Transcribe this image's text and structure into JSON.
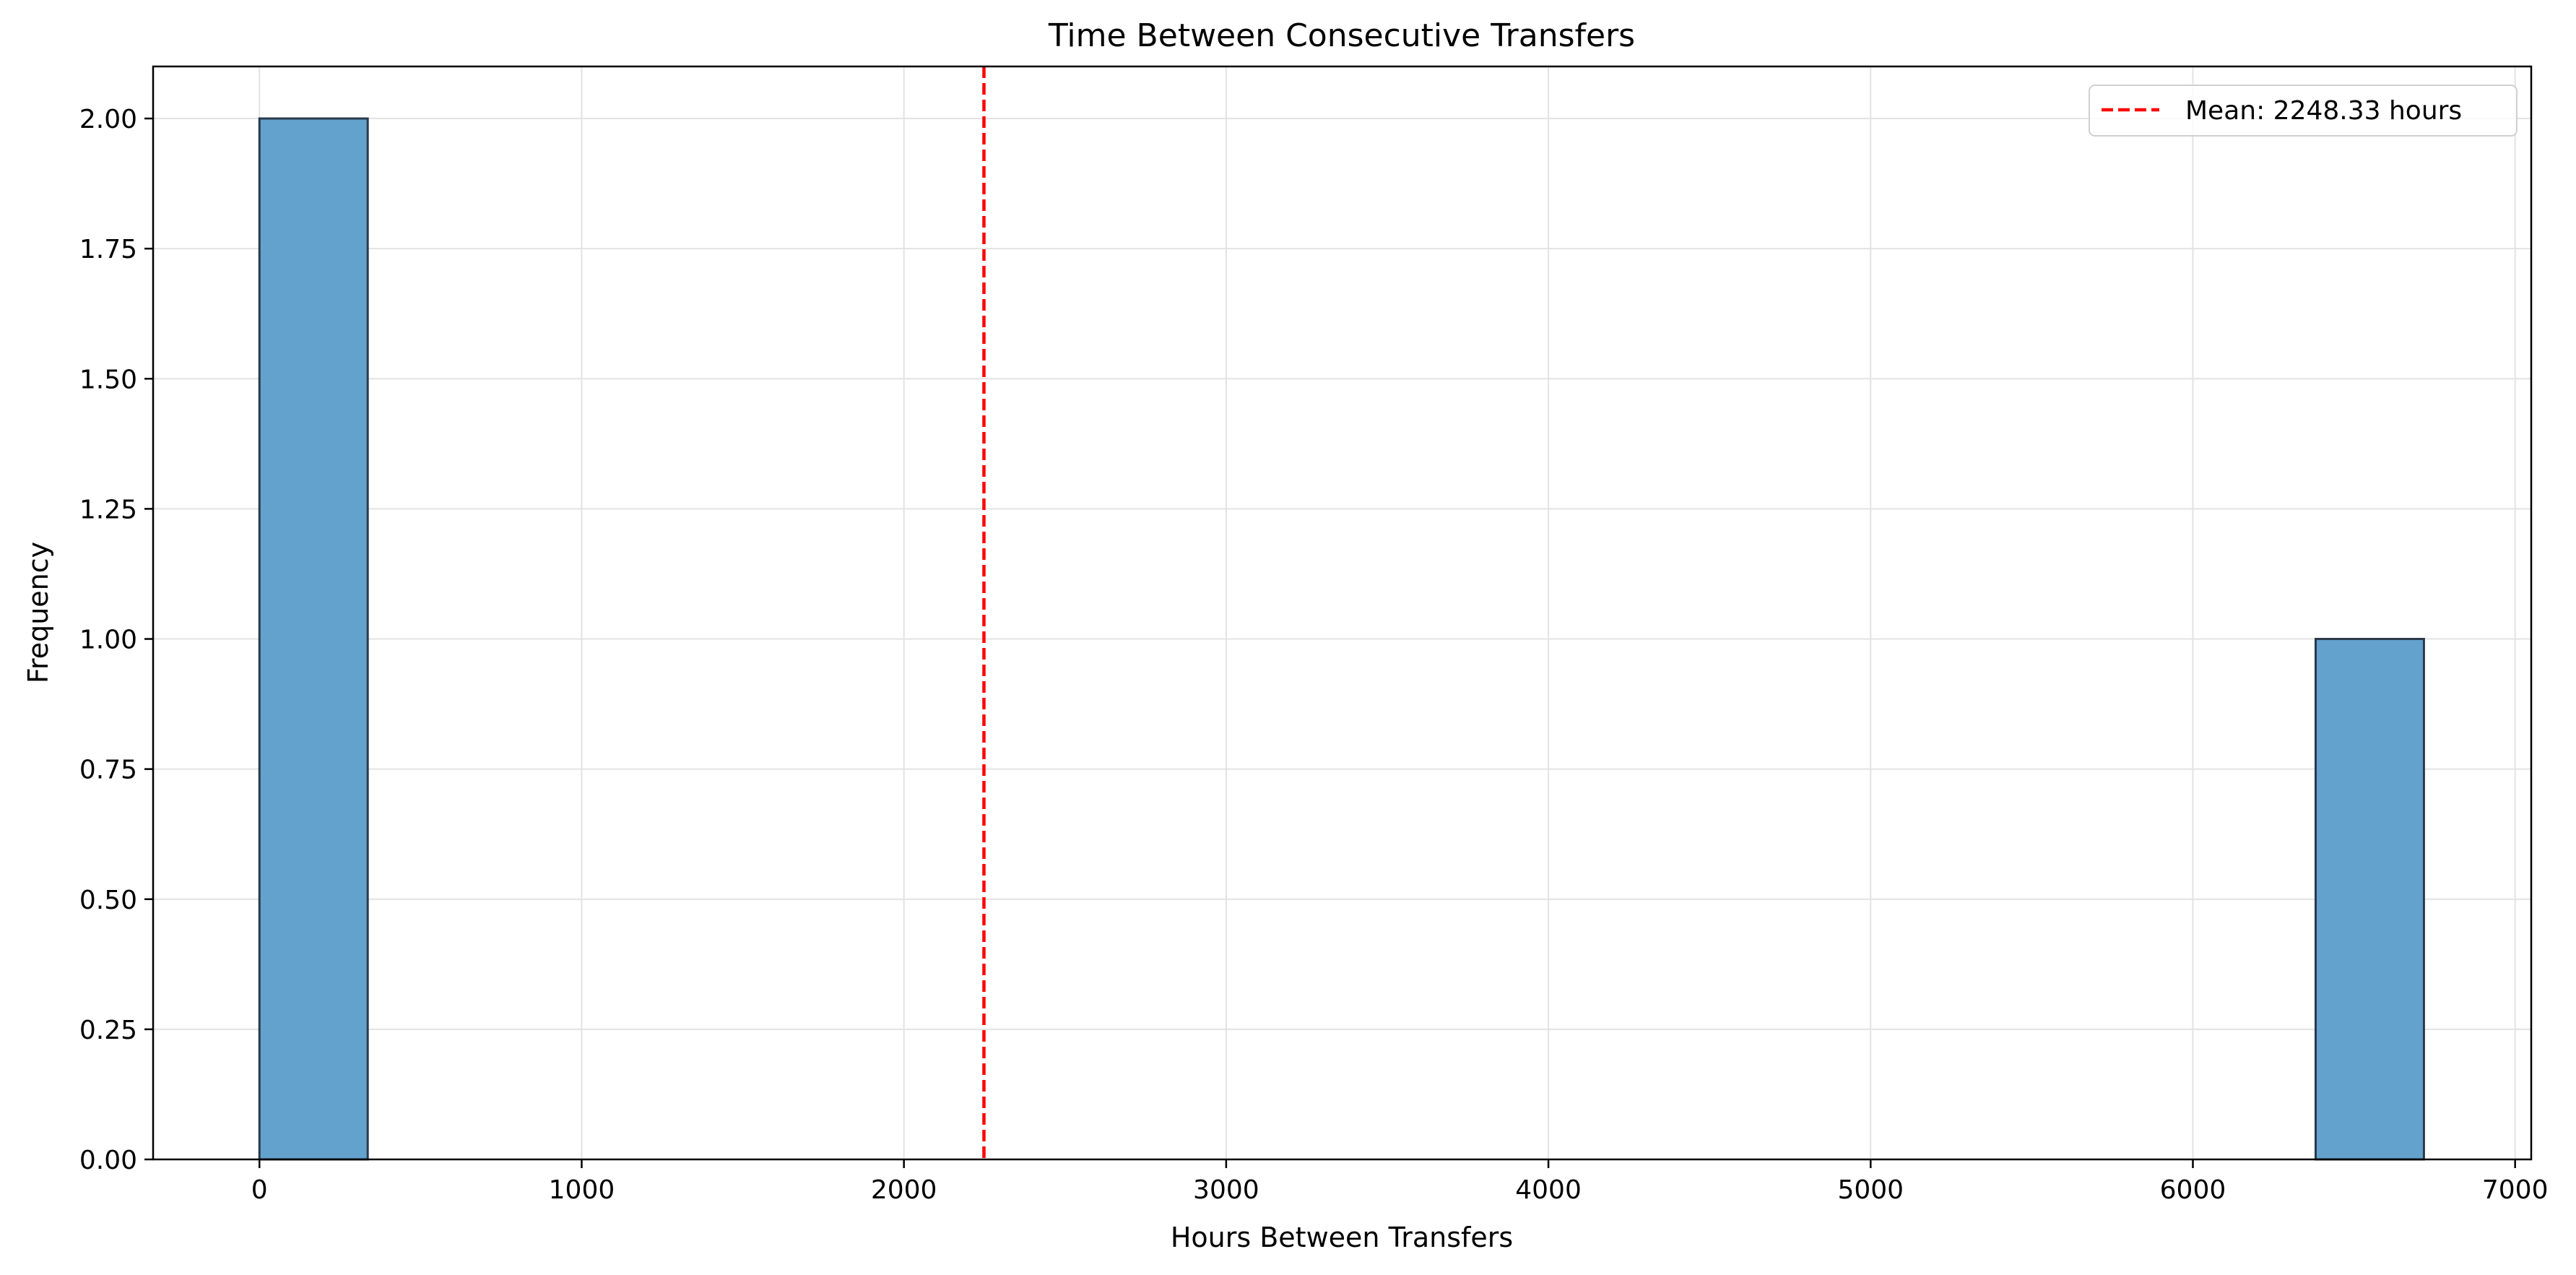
{
  "chart_data": {
    "type": "bar",
    "title": "Time Between Consecutive Transfers",
    "xlabel": "Hours Between Transfers",
    "ylabel": "Frequency",
    "xlim": [
      -330,
      7050
    ],
    "ylim": [
      0,
      2.1
    ],
    "xticks": [
      0,
      1000,
      2000,
      3000,
      4000,
      5000,
      6000,
      7000
    ],
    "yticks": [
      0.0,
      0.25,
      0.5,
      0.75,
      1.0,
      1.25,
      1.5,
      1.75,
      2.0
    ],
    "grid": true,
    "bars": [
      {
        "x0": 0,
        "x1": 336,
        "value": 2
      },
      {
        "x0": 6381,
        "x1": 6717,
        "value": 1
      }
    ],
    "bar_color": "#63a2cd",
    "bar_edge_color": "#2a3a4a",
    "mean_line": {
      "value": 2248.33,
      "color": "#ff0000",
      "label": "Mean: 2248.33 hours"
    },
    "legend_position": "top-right"
  }
}
